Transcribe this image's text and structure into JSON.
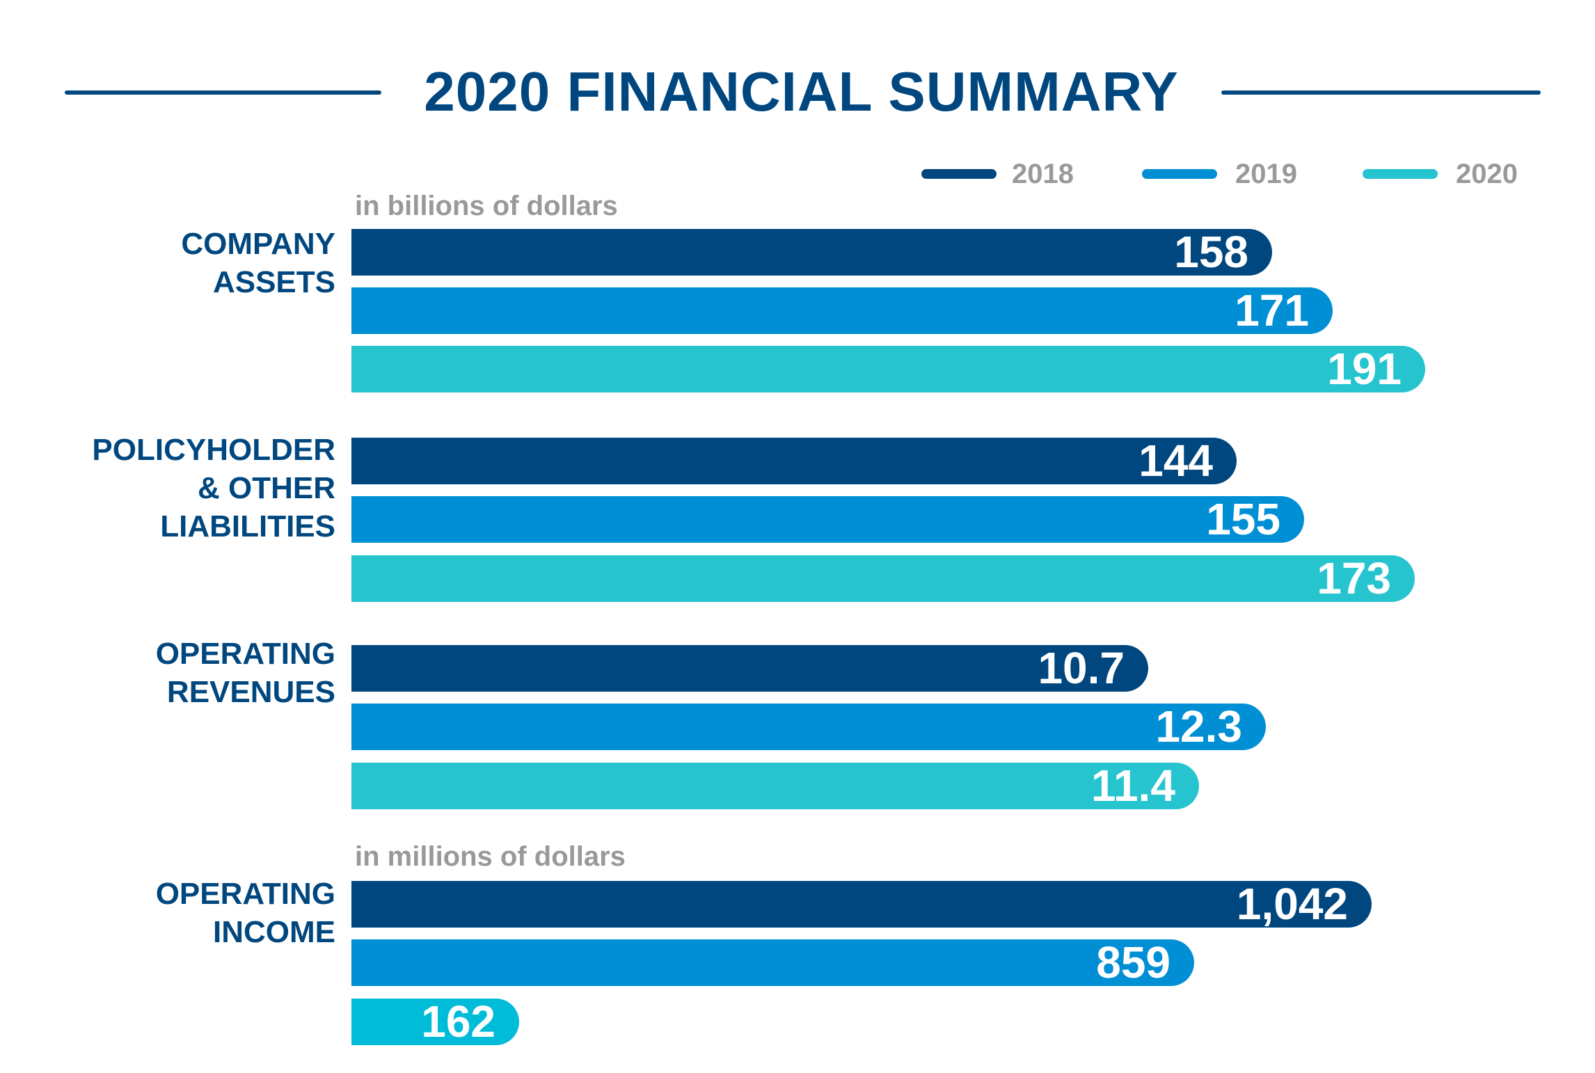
{
  "title": "2020 FINANCIAL SUMMARY",
  "colors": {
    "2018": "#00477f",
    "2019": "#008fd5",
    "2020": "#25c4cf",
    "title": "#00477f",
    "unit_text": "#999999"
  },
  "legend": [
    "2018",
    "2019",
    "2020"
  ],
  "chart_data": {
    "type": "bar",
    "orientation": "horizontal",
    "title": "2020 FINANCIAL SUMMARY",
    "legend_placement": "top-right",
    "grid": false,
    "categories": [
      {
        "lines": [
          "COMPANY",
          "ASSETS"
        ],
        "unit": "in billions of dollars"
      },
      {
        "lines": [
          "POLICYHOLDER",
          "& OTHER",
          "LIABILITIES"
        ]
      },
      {
        "lines": [
          "OPERATING",
          "REVENUES"
        ]
      },
      {
        "lines": [
          "OPERATING",
          "INCOME"
        ],
        "unit": "in millions of dollars"
      }
    ],
    "series": [
      {
        "name": "2018",
        "values": [
          158,
          144,
          10.7,
          1042
        ],
        "labels": [
          "158",
          "144",
          "10.7",
          "1,042"
        ]
      },
      {
        "name": "2019",
        "values": [
          171,
          155,
          12.3,
          859
        ],
        "labels": [
          "171",
          "155",
          "12.3",
          "859"
        ]
      },
      {
        "name": "2020",
        "values": [
          191,
          173,
          11.4,
          162
        ],
        "labels": [
          "191",
          "173",
          "11.4",
          "162"
        ]
      }
    ]
  }
}
